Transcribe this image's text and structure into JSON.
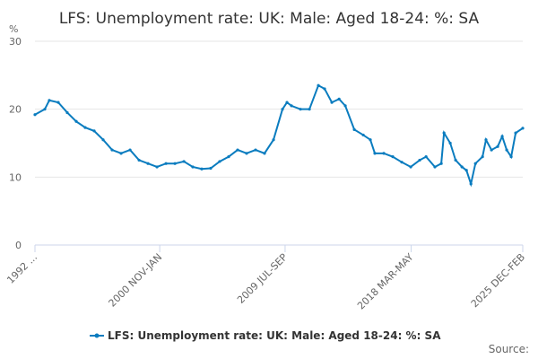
{
  "chart_data": {
    "type": "line",
    "title": "LFS: Unemployment rate: UK: Male: Aged 18-24: %: SA",
    "y_label": "%",
    "source": "Source:",
    "x": [
      1992.3,
      1992.98,
      1993.29,
      1993.91,
      1994.53,
      1995.15,
      1995.77,
      1996.39,
      1997.01,
      1997.63,
      1998.25,
      1998.87,
      1999.49,
      2000.11,
      2000.73,
      2001.35,
      2001.97,
      2002.59,
      2003.2,
      2003.82,
      2004.44,
      2005.06,
      2005.68,
      2006.3,
      2006.92,
      2007.54,
      2008.16,
      2008.78,
      2009.4,
      2009.71,
      2010.02,
      2010.64,
      2011.26,
      2011.88,
      2012.31,
      2012.81,
      2013.31,
      2013.74,
      2014.36,
      2014.98,
      2015.47,
      2015.78,
      2016.4,
      2017.02,
      2017.64,
      2018.26,
      2018.88,
      2019.32,
      2019.93,
      2020.37,
      2020.56,
      2020.99,
      2021.36,
      2021.8,
      2022.11,
      2022.42,
      2022.73,
      2023.22,
      2023.46,
      2023.84,
      2024.27,
      2024.58,
      2024.89,
      2025.2,
      2025.51,
      2026.0
    ],
    "series": [
      {
        "name": "LFS: Unemployment rate: UK: Male: Aged 18-24: %: SA",
        "color": "#0a7cbf",
        "values": [
          19.2,
          20,
          21.3,
          21,
          19.5,
          18.2,
          17.3,
          16.8,
          15.5,
          14,
          13.5,
          14,
          12.5,
          12,
          11.5,
          12,
          12,
          12.3,
          11.5,
          11.2,
          11.3,
          12.3,
          13,
          14,
          13.5,
          14,
          13.5,
          15.5,
          20,
          21,
          20.5,
          20,
          20,
          23.5,
          23,
          21,
          21.5,
          20.5,
          17,
          16.2,
          15.5,
          13.5,
          13.5,
          13,
          12.2,
          11.5,
          12.5,
          13,
          11.5,
          12,
          16.5,
          15,
          12.5,
          11.5,
          11,
          9,
          12,
          13,
          15.5,
          14,
          14.5,
          16,
          14,
          13,
          16.5,
          17.2
        ]
      }
    ],
    "xlim": [
      1992.3,
      2026.0
    ],
    "xticks": [
      {
        "value": 1992.3,
        "label": "1992 ..."
      },
      {
        "value": 2000.92,
        "label": "2000 NOV-JAN"
      },
      {
        "value": 2009.58,
        "label": "2009 JUL-SEP"
      },
      {
        "value": 2018.29,
        "label": "2018 MAR-MAY"
      },
      {
        "value": 2026.0,
        "label": "2025 DEC-FEB"
      }
    ],
    "ylim": [
      0,
      30
    ],
    "yticks": [
      0,
      10,
      20,
      30
    ],
    "grid": true
  }
}
